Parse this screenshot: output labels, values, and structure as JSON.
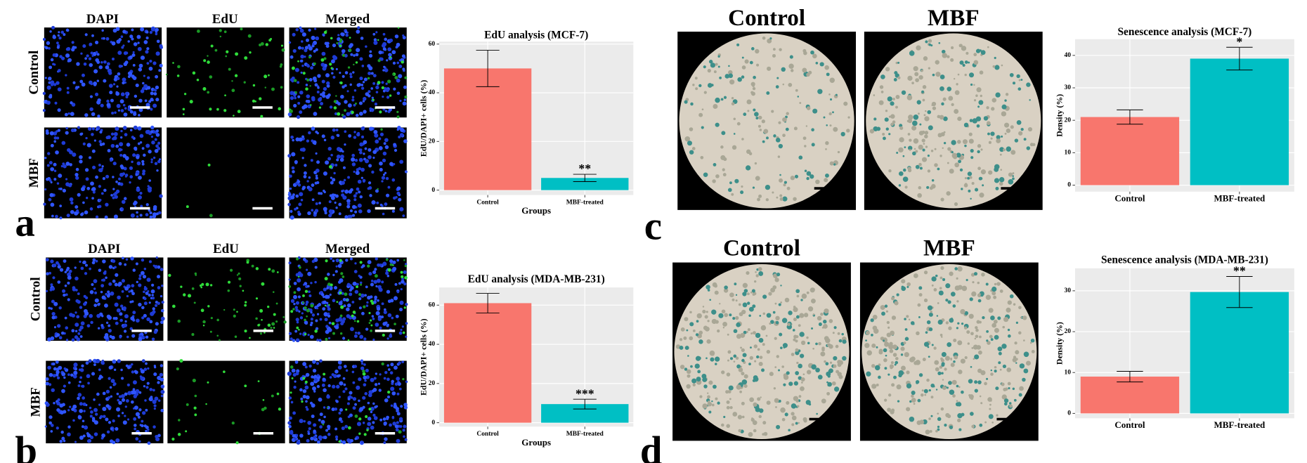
{
  "panel_labels": [
    "a",
    "b",
    "c",
    "d"
  ],
  "micrographs": [
    {
      "columns": [
        "DAPI",
        "EdU",
        "Merged"
      ],
      "rows": [
        "Control",
        "MBF"
      ]
    },
    {
      "columns": [
        "DAPI",
        "EdU",
        "Merged"
      ],
      "rows": [
        "Control",
        "MBF"
      ]
    },
    {
      "columns": [
        "Control",
        "MBF"
      ]
    },
    {
      "columns": [
        "Control",
        "MBF"
      ]
    }
  ],
  "chart_data": [
    {
      "type": "bar",
      "title": "EdU analysis (MCF-7)",
      "x_label": "Groups",
      "y_label": "EdU/DAPI+ cells (%)",
      "categories": [
        "Control",
        "MBF-treated"
      ],
      "values": [
        50,
        5
      ],
      "errors": [
        7.5,
        1.5
      ],
      "colors": [
        "#f8766d",
        "#00bfc4"
      ],
      "ylim": [
        -2,
        61
      ],
      "yticks": [
        0,
        20,
        40,
        60
      ],
      "grid": true,
      "annotations": [
        {
          "category": "MBF-treated",
          "text": "**"
        }
      ]
    },
    {
      "type": "bar",
      "title": "EdU analysis (MDA-MB-231)",
      "x_label": "Groups",
      "y_label": "EdU/DAPI+ cells (%)",
      "categories": [
        "Control",
        "MBF-treated"
      ],
      "values": [
        61,
        9.5
      ],
      "errors": [
        5,
        2.5
      ],
      "colors": [
        "#f8766d",
        "#00bfc4"
      ],
      "ylim": [
        -2,
        69
      ],
      "yticks": [
        0,
        20,
        40,
        60
      ],
      "grid": true,
      "annotations": [
        {
          "category": "MBF-treated",
          "text": "***"
        }
      ]
    },
    {
      "type": "bar",
      "title": "Senescence analysis (MCF-7)",
      "y_label": "Density (%)",
      "categories": [
        "Control",
        "MBF-treated"
      ],
      "values": [
        21,
        39
      ],
      "errors": [
        2.2,
        3.5
      ],
      "colors": [
        "#f8766d",
        "#00bfc4"
      ],
      "ylim": [
        -2,
        45
      ],
      "yticks": [
        0,
        10,
        20,
        30,
        40
      ],
      "grid": true,
      "annotations": [
        {
          "category": "MBF-treated",
          "text": "*"
        }
      ]
    },
    {
      "type": "bar",
      "title": "Senescence analysis (MDA-MB-231)",
      "y_label": "Density (%)",
      "categories": [
        "Control",
        "MBF-treated"
      ],
      "values": [
        9,
        29.7
      ],
      "errors": [
        1.3,
        3.8
      ],
      "colors": [
        "#f8766d",
        "#00bfc4"
      ],
      "ylim": [
        -1.2,
        35.5
      ],
      "yticks": [
        0,
        10,
        20,
        30
      ],
      "grid": true,
      "annotations": [
        {
          "category": "MBF-treated",
          "text": "**"
        }
      ]
    }
  ]
}
